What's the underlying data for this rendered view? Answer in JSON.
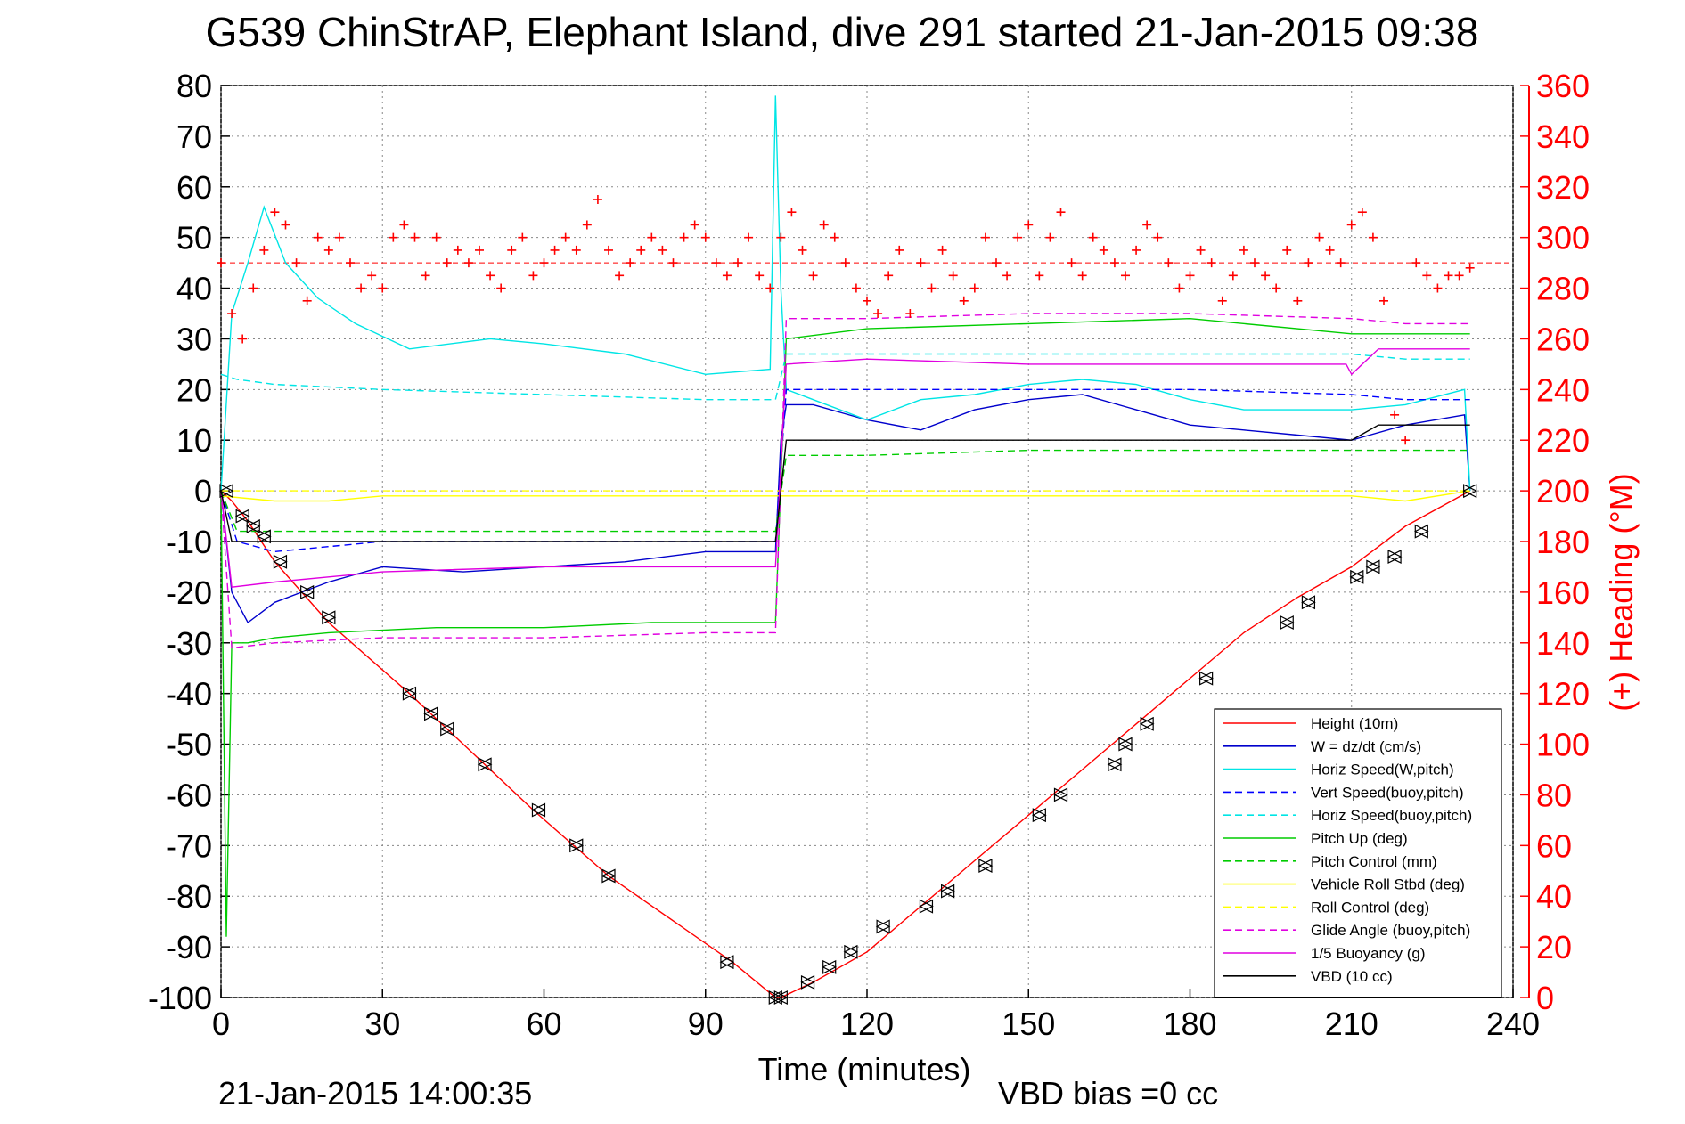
{
  "chart_data": {
    "type": "line",
    "title": "G539 ChinStrAP, Elephant Island, dive 291 started 21-Jan-2015 09:38",
    "xlabel": "Time (minutes)",
    "ylabel": "",
    "ylabel_right": "(+) Heading (°M)",
    "xlim": [
      0,
      240
    ],
    "ylim": [
      -100,
      80
    ],
    "ylim_right": [
      0,
      360
    ],
    "xticks": [
      0,
      30,
      60,
      90,
      120,
      150,
      180,
      210,
      240
    ],
    "yticks": [
      -100,
      -90,
      -80,
      -70,
      -60,
      -50,
      -40,
      -30,
      -20,
      -10,
      0,
      10,
      20,
      30,
      40,
      50,
      60,
      70,
      80
    ],
    "yticks_right": [
      0,
      20,
      40,
      60,
      80,
      100,
      120,
      140,
      160,
      180,
      200,
      220,
      240,
      260,
      280,
      300,
      320,
      340,
      360
    ],
    "grid": true,
    "legend_position": "bottom-right",
    "footer_left": "21-Jan-2015 14:00:35",
    "footer_right": "VBD bias =0 cc",
    "colors": {
      "height": "#ff0000",
      "w": "#0000cc",
      "horiz_speed": "#00e5e5",
      "vert_speed": "#0000ff",
      "horiz_speed_buoy": "#00e5e5",
      "pitch": "#00cc00",
      "pitch_control": "#00cc00",
      "roll": "#ffff00",
      "roll_control": "#ffff00",
      "glide": "#e000e0",
      "buoyancy": "#e000e0",
      "vbd": "#000000",
      "heading": "#ff0000"
    },
    "series": [
      {
        "key": "height",
        "name": "Height (10m)",
        "style": "solid",
        "color": "#ff0000",
        "x": [
          0,
          2,
          5,
          10,
          15,
          20,
          35,
          45,
          58,
          72,
          95,
          103,
          104,
          110,
          120,
          130,
          140,
          150,
          160,
          170,
          180,
          190,
          200,
          210,
          220,
          232
        ],
        "y": [
          0,
          -2,
          -6,
          -14,
          -20,
          -26,
          -40,
          -50,
          -63,
          -76,
          -93,
          -100,
          -100,
          -97,
          -91,
          -82,
          -73,
          -64,
          -55,
          -46,
          -37,
          -28,
          -21,
          -15,
          -7,
          0
        ]
      },
      {
        "key": "w",
        "name": "W = dz/dt (cm/s)",
        "style": "solid",
        "color": "#0000cc",
        "x": [
          0,
          2,
          5,
          10,
          15,
          20,
          30,
          45,
          60,
          75,
          90,
          103,
          104,
          105,
          110,
          120,
          130,
          140,
          150,
          160,
          170,
          180,
          190,
          200,
          210,
          220,
          231,
          232
        ],
        "y": [
          0,
          -20,
          -26,
          -22,
          -20,
          -18,
          -15,
          -16,
          -15,
          -14,
          -12,
          -12,
          10,
          17,
          17,
          14,
          12,
          16,
          18,
          19,
          16,
          13,
          12,
          11,
          10,
          13,
          15,
          0
        ]
      },
      {
        "key": "horiz_speed",
        "name": "Horiz Speed(W,pitch)",
        "style": "solid",
        "color": "#00e5e5",
        "x": [
          0,
          2,
          5,
          8,
          12,
          18,
          25,
          35,
          50,
          60,
          75,
          90,
          102,
          103,
          104,
          105,
          110,
          120,
          130,
          140,
          150,
          160,
          170,
          180,
          190,
          200,
          210,
          220,
          231,
          232
        ],
        "y": [
          0,
          35,
          45,
          56,
          45,
          38,
          33,
          28,
          30,
          29,
          27,
          23,
          24,
          78,
          40,
          20,
          18,
          14,
          18,
          19,
          21,
          22,
          21,
          18,
          16,
          16,
          16,
          17,
          20,
          0
        ]
      },
      {
        "key": "vert_speed",
        "name": "Vert Speed(buoy,pitch)",
        "style": "dashed",
        "color": "#0000ff",
        "x": [
          0,
          3,
          10,
          30,
          60,
          90,
          103,
          105,
          120,
          150,
          180,
          210,
          220,
          232
        ],
        "y": [
          0,
          -10,
          -12,
          -10,
          -10,
          -10,
          -10,
          20,
          20,
          20,
          20,
          19,
          18,
          18
        ]
      },
      {
        "key": "horiz_speed_buoy",
        "name": "Horiz Speed(buoy,pitch)",
        "style": "dashed",
        "color": "#00e5e5",
        "x": [
          0,
          3,
          10,
          30,
          60,
          90,
          103,
          105,
          120,
          150,
          180,
          210,
          220,
          232
        ],
        "y": [
          23,
          22,
          21,
          20,
          19,
          18,
          18,
          27,
          27,
          27,
          27,
          27,
          26,
          26
        ]
      },
      {
        "key": "pitch",
        "name": "Pitch Up (deg)",
        "style": "solid",
        "color": "#00cc00",
        "x": [
          0,
          1,
          2,
          5,
          10,
          20,
          40,
          60,
          80,
          90,
          102,
          103,
          105,
          120,
          150,
          180,
          210,
          220,
          232
        ],
        "y": [
          0,
          -88,
          -30,
          -30,
          -29,
          -28,
          -27,
          -27,
          -26,
          -26,
          -26,
          -26,
          30,
          32,
          33,
          34,
          31,
          31,
          31
        ]
      },
      {
        "key": "pitch_control",
        "name": "Pitch Control (mm)",
        "style": "dashed",
        "color": "#00cc00",
        "x": [
          0,
          3,
          10,
          30,
          60,
          90,
          103,
          105,
          120,
          150,
          180,
          210,
          232
        ],
        "y": [
          0,
          -8,
          -8,
          -8,
          -8,
          -8,
          -8,
          7,
          7,
          8,
          8,
          8,
          8
        ]
      },
      {
        "key": "roll",
        "name": "Vehicle Roll Stbd (deg)",
        "style": "solid",
        "color": "#ffff00",
        "x": [
          0,
          10,
          20,
          30,
          40,
          50,
          60,
          70,
          80,
          90,
          100,
          103,
          110,
          120,
          130,
          140,
          150,
          160,
          170,
          180,
          190,
          200,
          210,
          220,
          232
        ],
        "y": [
          -1,
          -2,
          -2,
          -1,
          -1,
          -1,
          -1,
          -1,
          -1,
          -1,
          -1,
          -1,
          -1,
          -1,
          -1,
          -1,
          -1,
          -1,
          -1,
          -1,
          -1,
          -1,
          -1,
          -2,
          0
        ]
      },
      {
        "key": "roll_control",
        "name": "Roll Control (deg)",
        "style": "dashed",
        "color": "#ffff00",
        "x": [
          0,
          232
        ],
        "y": [
          0,
          0
        ]
      },
      {
        "key": "glide",
        "name": "Glide Angle (buoy,pitch)",
        "style": "dashed",
        "color": "#e000e0",
        "x": [
          0,
          2,
          10,
          30,
          60,
          90,
          103,
          105,
          120,
          150,
          180,
          210,
          220,
          232
        ],
        "y": [
          0,
          -31,
          -30,
          -29,
          -29,
          -28,
          -28,
          34,
          34,
          35,
          35,
          34,
          33,
          33
        ]
      },
      {
        "key": "buoyancy",
        "name": "1/5 Buoyancy (g)",
        "style": "solid",
        "color": "#e000e0",
        "x": [
          0,
          2,
          10,
          30,
          60,
          90,
          103,
          105,
          120,
          150,
          180,
          209,
          210,
          215,
          232
        ],
        "y": [
          0,
          -19,
          -18,
          -16,
          -15,
          -15,
          -15,
          25,
          26,
          25,
          25,
          25,
          23,
          28,
          28
        ]
      },
      {
        "key": "vbd",
        "name": "VBD (10 cc)",
        "style": "solid",
        "color": "#000000",
        "x": [
          0,
          2,
          10,
          30,
          60,
          90,
          103,
          105,
          120,
          150,
          180,
          210,
          215,
          232
        ],
        "y": [
          0,
          -10,
          -10,
          -10,
          -10,
          -10,
          -10,
          10,
          10,
          10,
          10,
          10,
          13,
          13
        ]
      }
    ],
    "heading_mean": 290,
    "heading": {
      "name": "Heading",
      "x": [
        0,
        2,
        4,
        6,
        8,
        10,
        12,
        14,
        16,
        18,
        20,
        22,
        24,
        26,
        28,
        30,
        32,
        34,
        36,
        38,
        40,
        42,
        44,
        46,
        48,
        50,
        52,
        54,
        56,
        58,
        60,
        62,
        64,
        66,
        68,
        70,
        72,
        74,
        76,
        78,
        80,
        82,
        84,
        86,
        88,
        90,
        92,
        94,
        96,
        98,
        100,
        102,
        104,
        106,
        108,
        110,
        112,
        114,
        116,
        118,
        120,
        122,
        124,
        126,
        128,
        130,
        132,
        134,
        136,
        138,
        140,
        142,
        144,
        146,
        148,
        150,
        152,
        154,
        156,
        158,
        160,
        162,
        164,
        166,
        168,
        170,
        172,
        174,
        176,
        178,
        180,
        182,
        184,
        186,
        188,
        190,
        192,
        194,
        196,
        198,
        200,
        202,
        204,
        206,
        208,
        210,
        212,
        214,
        216,
        218,
        220,
        222,
        224,
        226,
        228,
        230,
        232
      ],
      "y": [
        290,
        270,
        260,
        280,
        295,
        310,
        305,
        290,
        275,
        300,
        295,
        300,
        290,
        280,
        285,
        280,
        300,
        305,
        300,
        285,
        300,
        290,
        295,
        290,
        295,
        285,
        280,
        295,
        300,
        285,
        290,
        295,
        300,
        295,
        305,
        315,
        295,
        285,
        290,
        295,
        300,
        295,
        290,
        300,
        305,
        300,
        290,
        285,
        290,
        300,
        285,
        280,
        300,
        310,
        295,
        285,
        305,
        300,
        290,
        280,
        275,
        270,
        285,
        295,
        270,
        290,
        280,
        295,
        285,
        275,
        280,
        300,
        290,
        285,
        300,
        305,
        285,
        300,
        310,
        290,
        285,
        300,
        295,
        290,
        285,
        295,
        305,
        300,
        290,
        280,
        285,
        295,
        290,
        275,
        285,
        295,
        290,
        285,
        280,
        295,
        275,
        290,
        300,
        295,
        290,
        305,
        310,
        300,
        275,
        230,
        220,
        290,
        285,
        280,
        285,
        285,
        288
      ]
    },
    "markers": {
      "x": [
        1,
        4,
        6,
        8,
        11,
        16,
        20,
        35,
        39,
        42,
        49,
        59,
        66,
        72,
        94,
        103,
        104,
        109,
        113,
        117,
        123,
        131,
        135,
        142,
        152,
        156,
        166,
        168,
        172,
        183,
        198,
        202,
        211,
        214,
        218,
        223,
        232
      ],
      "y": [
        0,
        -5,
        -7,
        -9,
        -14,
        -20,
        -25,
        -40,
        -44,
        -47,
        -54,
        -63,
        -70,
        -76,
        -93,
        -100,
        -100,
        -97,
        -94,
        -91,
        -86,
        -82,
        -79,
        -74,
        -64,
        -60,
        -54,
        -50,
        -46,
        -37,
        -26,
        -22,
        -17,
        -15,
        -13,
        -8,
        0
      ]
    }
  }
}
